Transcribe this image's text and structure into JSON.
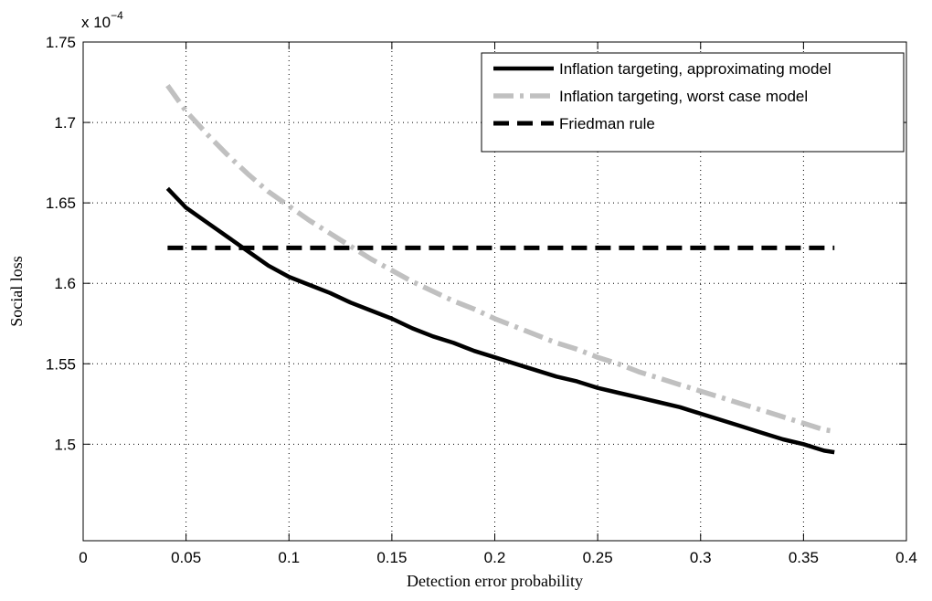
{
  "chart_data": {
    "type": "line",
    "xlabel": "Detection error probability",
    "ylabel": "Social loss",
    "y_exponent_label": {
      "base": "x 10",
      "exponent": "−4"
    },
    "xlim": [
      0,
      0.4
    ],
    "ylim": [
      1.44,
      1.75
    ],
    "xticks": [
      0,
      0.05,
      0.1,
      0.15,
      0.2,
      0.25,
      0.3,
      0.35,
      0.4
    ],
    "xtick_labels": [
      "0",
      "0.05",
      "0.1",
      "0.15",
      "0.2",
      "0.25",
      "0.3",
      "0.35",
      "0.4"
    ],
    "yticks": [
      1.5,
      1.55,
      1.6,
      1.65,
      1.7,
      1.75
    ],
    "ytick_labels": [
      "1.5",
      "1.55",
      "1.6",
      "1.65",
      "1.7",
      "1.75"
    ],
    "grid": true,
    "legend_position": "top-right",
    "series": [
      {
        "name": "Inflation targeting, approximating model",
        "color": "#000000",
        "style": "solid",
        "x": [
          0.041,
          0.05,
          0.06,
          0.07,
          0.08,
          0.09,
          0.1,
          0.11,
          0.12,
          0.13,
          0.14,
          0.15,
          0.16,
          0.17,
          0.18,
          0.19,
          0.2,
          0.21,
          0.22,
          0.23,
          0.24,
          0.25,
          0.26,
          0.27,
          0.28,
          0.29,
          0.3,
          0.31,
          0.32,
          0.33,
          0.34,
          0.35,
          0.36,
          0.365
        ],
        "y": [
          1.659,
          1.647,
          1.638,
          1.629,
          1.62,
          1.611,
          1.604,
          1.599,
          1.594,
          1.588,
          1.583,
          1.578,
          1.572,
          1.567,
          1.563,
          1.558,
          1.554,
          1.55,
          1.546,
          1.542,
          1.539,
          1.535,
          1.532,
          1.529,
          1.526,
          1.523,
          1.519,
          1.515,
          1.511,
          1.507,
          1.503,
          1.5,
          1.496,
          1.495
        ]
      },
      {
        "name": "Inflation targeting, worst case model",
        "color": "#c0c0c0",
        "style": "dash-dot",
        "x": [
          0.041,
          0.05,
          0.06,
          0.07,
          0.08,
          0.09,
          0.1,
          0.11,
          0.12,
          0.13,
          0.14,
          0.15,
          0.16,
          0.17,
          0.18,
          0.19,
          0.2,
          0.21,
          0.22,
          0.23,
          0.24,
          0.25,
          0.26,
          0.27,
          0.28,
          0.29,
          0.3,
          0.31,
          0.32,
          0.33,
          0.34,
          0.35,
          0.36,
          0.365
        ],
        "y": [
          1.723,
          1.707,
          1.693,
          1.68,
          1.668,
          1.657,
          1.648,
          1.639,
          1.631,
          1.623,
          1.615,
          1.608,
          1.601,
          1.595,
          1.589,
          1.584,
          1.578,
          1.573,
          1.568,
          1.563,
          1.559,
          1.554,
          1.55,
          1.545,
          1.541,
          1.537,
          1.533,
          1.529,
          1.525,
          1.521,
          1.517,
          1.513,
          1.509,
          1.508
        ]
      },
      {
        "name": "Friedman rule",
        "color": "#000000",
        "style": "dashed",
        "x": [
          0.041,
          0.365
        ],
        "y": [
          1.622,
          1.622
        ]
      }
    ]
  }
}
